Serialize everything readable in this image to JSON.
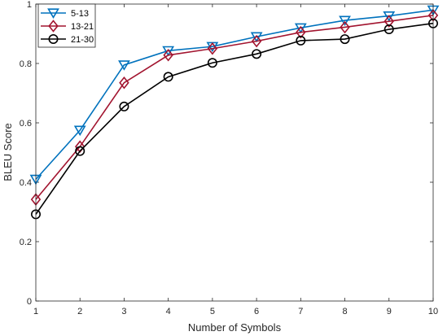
{
  "chart_data": {
    "type": "line",
    "xlabel": "Number of Symbols",
    "ylabel": "BLEU Score",
    "xlim": [
      1,
      10
    ],
    "ylim": [
      0,
      1
    ],
    "x": [
      1,
      2,
      3,
      4,
      5,
      6,
      7,
      8,
      9,
      10
    ],
    "xticks": [
      "1",
      "2",
      "3",
      "4",
      "5",
      "6",
      "7",
      "8",
      "9",
      "10"
    ],
    "yticks": [
      "0",
      "0.2",
      "0.4",
      "0.6",
      "0.8",
      "1"
    ],
    "grid": false,
    "legend_position": "top-left",
    "series": [
      {
        "name": "5-13",
        "color": "#0072BD",
        "marker": "triangle-down",
        "values": [
          0.41,
          0.575,
          0.795,
          0.843,
          0.857,
          0.89,
          0.92,
          0.945,
          0.96,
          0.98
        ]
      },
      {
        "name": "13-21",
        "color": "#A2142F",
        "marker": "diamond",
        "values": [
          0.342,
          0.52,
          0.735,
          0.828,
          0.85,
          0.875,
          0.905,
          0.922,
          0.942,
          0.962
        ]
      },
      {
        "name": "21-30",
        "color": "#000000",
        "marker": "circle",
        "values": [
          0.292,
          0.505,
          0.655,
          0.755,
          0.802,
          0.832,
          0.877,
          0.882,
          0.915,
          0.935
        ]
      }
    ]
  }
}
